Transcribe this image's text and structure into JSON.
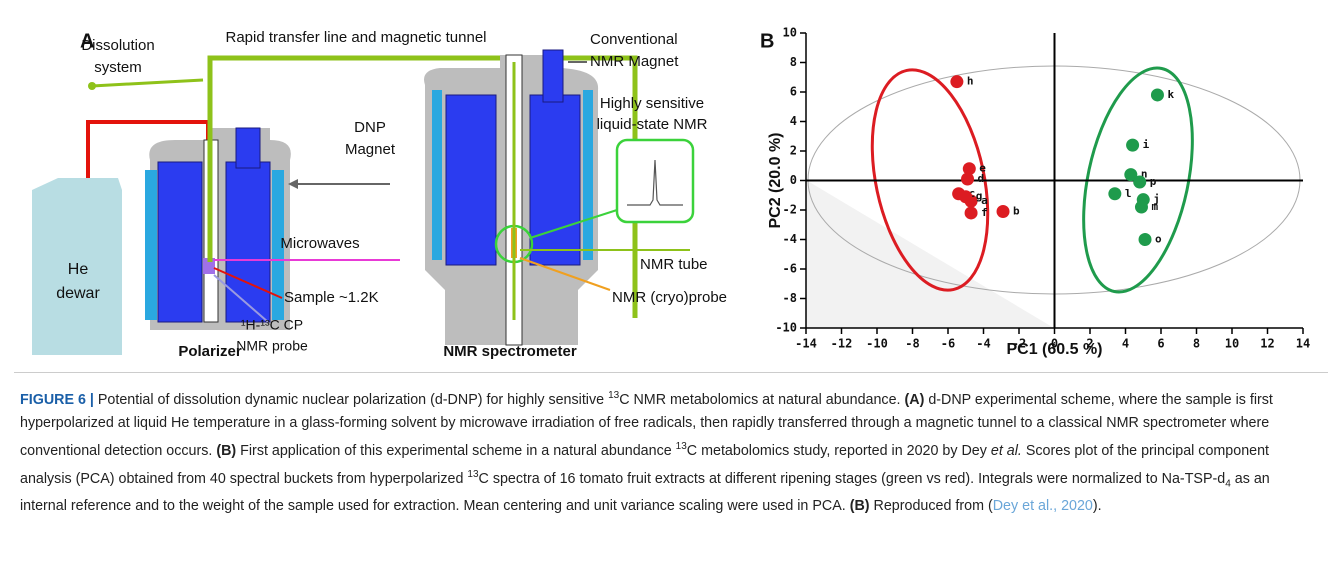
{
  "panel_a": {
    "letter": "A",
    "dissolution": [
      "Dissolution",
      "system"
    ],
    "transfer": "Rapid transfer line and magnetic tunnel",
    "he_dewar": [
      "He",
      "dewar"
    ],
    "dnp_magnet": [
      "DNP",
      "Magnet"
    ],
    "microwaves": "Microwaves",
    "sample": "Sample ~1.2K",
    "probe": [
      "¹H-¹³C CP",
      "NMR probe"
    ],
    "polarizer": "Polarizer",
    "conventional": [
      "Conventional",
      "NMR Magnet"
    ],
    "sensitive": [
      "Highly sensitive",
      "liquid-state NMR"
    ],
    "nmr_tube": "NMR tube",
    "cryoprobe": "NMR (cryo)probe",
    "spectrometer": "NMR spectrometer"
  },
  "chart_data": {
    "type": "scatter",
    "letter": "B",
    "xlabel": "PC1 (60.5 %)",
    "ylabel": "PC2 (20.0 %)",
    "xlim": [
      -14,
      14
    ],
    "ylim": [
      -10,
      10
    ],
    "xticks": [
      -14,
      -12,
      -10,
      -8,
      -6,
      -4,
      -2,
      0,
      2,
      4,
      6,
      8,
      10,
      12,
      14
    ],
    "yticks": [
      -10,
      -8,
      -6,
      -4,
      -2,
      0,
      2,
      4,
      6,
      8,
      10
    ],
    "series": [
      {
        "color": "#dc1c22",
        "point_labels": [
          "a",
          "b",
          "c",
          "d",
          "e",
          "f",
          "g",
          "h"
        ],
        "x": [
          -4.7,
          -2.9,
          -5.4,
          -4.9,
          -4.8,
          -4.7,
          -5.0,
          -5.5
        ],
        "values": [
          -1.4,
          -2.1,
          -0.9,
          0.1,
          0.8,
          -2.2,
          -1.1,
          6.7
        ]
      },
      {
        "color": "#1f9b4c",
        "point_labels": [
          "i",
          "j",
          "k",
          "l",
          "m",
          "n",
          "o",
          "p"
        ],
        "x": [
          4.4,
          5.0,
          5.8,
          3.4,
          4.9,
          4.3,
          5.1,
          4.8
        ],
        "values": [
          2.4,
          -1.3,
          5.8,
          -0.9,
          -1.8,
          0.4,
          -4.0,
          -0.1
        ]
      }
    ]
  },
  "caption": [
    "FIGURE 6 |",
    " Potential of dissolution dynamic nuclear polarization (d-DNP) for highly sensitive ",
    "13",
    "C NMR metabolomics at natural abundance. ",
    "(A)",
    " d-DNP experimental scheme, where the sample is first hyperpolarized at liquid He temperature in a glass-forming solvent by microwave irradiation of free radicals, then rapidly transferred through a magnetic tunnel to a classical NMR spectrometer where conventional detection occurs. ",
    "(B)",
    " First application of this experimental scheme in a natural abundance ",
    "13",
    "C metabolomics study, reported in 2020 by Dey ",
    "et al.",
    " Scores plot of the principal component analysis (PCA) obtained from 40 spectral buckets from hyperpolarized ",
    "13",
    "C spectra of 16 tomato fruit extracts at different ripening stages (green vs red). Integrals were normalized to Na-TSP-d",
    "4",
    " as an internal reference and to the weight of the sample used for extraction. Mean centering and unit variance scaling were used in PCA. ",
    "(B)",
    " Reproduced from (",
    "Dey et al., 2020",
    ")."
  ]
}
